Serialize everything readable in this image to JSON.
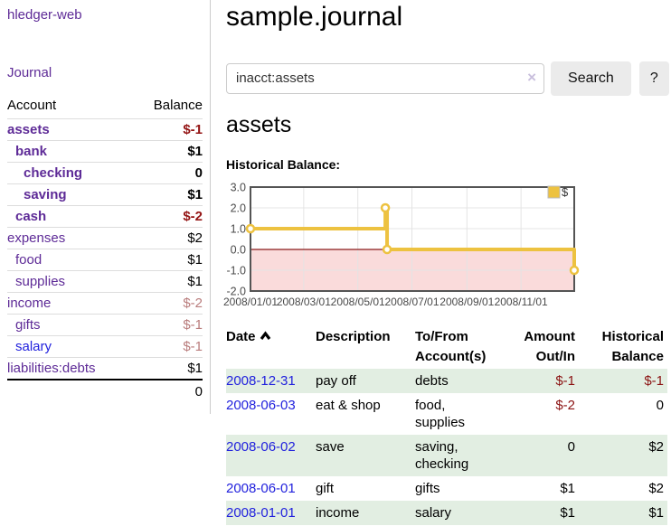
{
  "sidebar": {
    "app_title": "hledger-web",
    "nav": {
      "journal": "Journal"
    },
    "table": {
      "account_header": "Account",
      "balance_header": "Balance",
      "rows": [
        {
          "name": "assets",
          "indent": 0,
          "bold": true,
          "balance": "$-1",
          "bstyle": "neg-bold"
        },
        {
          "name": "bank",
          "indent": 1,
          "bold": true,
          "balance": "$1",
          "bstyle": "bold"
        },
        {
          "name": "checking",
          "indent": 2,
          "bold": true,
          "balance": "0",
          "bstyle": "bold"
        },
        {
          "name": "saving",
          "indent": 2,
          "bold": true,
          "balance": "$1",
          "bstyle": "bold"
        },
        {
          "name": "cash",
          "indent": 1,
          "bold": true,
          "balance": "$-2",
          "bstyle": "neg-bold"
        },
        {
          "name": "expenses",
          "indent": 0,
          "bold": false,
          "balance": "$2",
          "bstyle": "plain"
        },
        {
          "name": "food",
          "indent": 1,
          "bold": false,
          "balance": "$1",
          "bstyle": "plain"
        },
        {
          "name": "supplies",
          "indent": 1,
          "bold": false,
          "balance": "$1",
          "bstyle": "plain"
        },
        {
          "name": "income",
          "indent": 0,
          "bold": false,
          "balance": "$-2",
          "bstyle": "neg-light"
        },
        {
          "name": "gifts",
          "indent": 1,
          "bold": false,
          "balance": "$-1",
          "bstyle": "neg-light"
        },
        {
          "name": "salary",
          "indent": 1,
          "bold": false,
          "link_style": "blue",
          "balance": "$-1",
          "bstyle": "neg-light"
        },
        {
          "name": "liabilities:debts",
          "indent": 0,
          "bold": false,
          "balance": "$1",
          "bstyle": "plain"
        }
      ],
      "total": "0"
    }
  },
  "main": {
    "title": "sample.journal",
    "search": {
      "value": "inacct:assets",
      "clear_icon": "×",
      "button": "Search",
      "help_button": "?"
    },
    "section_title": "assets",
    "chart_label": "Historical Balance:",
    "chart_data": {
      "type": "line",
      "step": true,
      "legend": "$",
      "series_color": "#edc240",
      "marker_fill": "#ffffff",
      "neg_region_fill": "#fadbdb",
      "zero_line_color": "#8b1a1a",
      "grid_color": "#e4e4e4",
      "border_color": "#545454",
      "tick_label_color": "#4a4a4a",
      "ylim": [
        -2,
        3
      ],
      "ytick_values": [
        3,
        2,
        1,
        0,
        -1,
        -2
      ],
      "ytick_labels": [
        "3.0",
        "2.0",
        "1.0",
        "0.0",
        "-1.0",
        "-2.0"
      ],
      "x_span_days": 365,
      "xtick_days": [
        0,
        60,
        121,
        182,
        244,
        305
      ],
      "xtick_labels": [
        "2008/01/01",
        "2008/03/01",
        "2008/05/01",
        "2008/07/01",
        "2008/09/01",
        "2008/11/01"
      ],
      "points": [
        {
          "day": 0,
          "value": 1
        },
        {
          "day": 152,
          "value": 2
        },
        {
          "day": 154,
          "value": 0
        },
        {
          "day": 365,
          "value": -1
        }
      ]
    },
    "register": {
      "headers": {
        "date": "Date",
        "description": "Description",
        "account": "To/From Account(s)",
        "amount": "Amount Out/In",
        "balance": "Historical Balance"
      },
      "sort_icon": "chevron-up",
      "rows": [
        {
          "date": "2008-12-31",
          "description": "pay off",
          "accounts": "debts",
          "amount": "$-1",
          "amount_neg": true,
          "balance": "$-1",
          "balance_neg": true
        },
        {
          "date": "2008-06-03",
          "description": "eat & shop",
          "accounts": "food, supplies",
          "amount": "$-2",
          "amount_neg": true,
          "balance": "0",
          "balance_neg": false
        },
        {
          "date": "2008-06-02",
          "description": "save",
          "accounts": "saving, checking",
          "amount": "0",
          "amount_neg": false,
          "balance": "$2",
          "balance_neg": false
        },
        {
          "date": "2008-06-01",
          "description": "gift",
          "accounts": "gifts",
          "amount": "$1",
          "amount_neg": false,
          "balance": "$2",
          "balance_neg": false
        },
        {
          "date": "2008-01-01",
          "description": "income",
          "accounts": "salary",
          "amount": "$1",
          "amount_neg": false,
          "balance": "$1",
          "balance_neg": false
        }
      ]
    }
  },
  "colors": {
    "link_purple": "#5e2b97",
    "link_blue": "#2222dd",
    "negative_bold_red": "#941515",
    "negative_red": "#8b1212",
    "negative_light_red": "#b97c7c",
    "row_stripe_green": "#e2eee2",
    "button_gray": "#ebebeb",
    "chart_gold": "#edc240"
  }
}
